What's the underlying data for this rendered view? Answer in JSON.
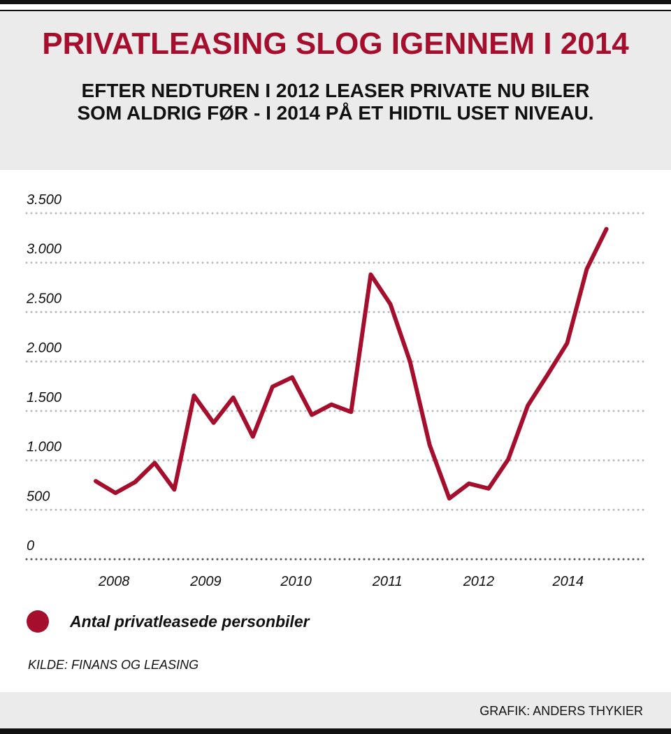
{
  "header": {
    "title": "PRIVATLEASING SLOG IGENNEM I 2014",
    "subtitle": "EFTER NEDTUREN I 2012 LEASER PRIVATE NU BILER SOM ALDRIG FØR - I 2014 PÅ ET HIDTIL USET NIVEAU."
  },
  "chart_data": {
    "type": "line",
    "title": "PRIVATLEASING SLOG IGENNEM I 2014",
    "xlabel": "",
    "ylabel": "",
    "ylim": [
      0,
      3500
    ],
    "yticks": [
      0,
      500,
      1000,
      1500,
      2000,
      2500,
      3000,
      3500
    ],
    "ytick_labels": [
      "0",
      "500",
      "1.000",
      "1.500",
      "2.000",
      "2.500",
      "3.000",
      "3.500"
    ],
    "xticks": [
      {
        "label": "2008",
        "at": 0.93
      },
      {
        "label": "2009",
        "at": 5.6
      },
      {
        "label": "2010",
        "at": 10.2
      },
      {
        "label": "2011",
        "at": 14.85
      },
      {
        "label": "2012",
        "at": 19.5
      },
      {
        "label": "2014",
        "at": 24.05
      }
    ],
    "grid": true,
    "series": [
      {
        "name": "Antal privatleasede personbiler",
        "color": "#a50f2d",
        "values": [
          790,
          670,
          780,
          975,
          705,
          1655,
          1380,
          1635,
          1240,
          1745,
          1840,
          1460,
          1565,
          1490,
          2880,
          2580,
          2000,
          1155,
          615,
          765,
          715,
          1010,
          1555,
          1865,
          2185,
          2935,
          3340
        ]
      }
    ],
    "legend": "bottom-left"
  },
  "source": "KILDE: FINANS OG LEASING",
  "credit": "GRAFIK: ANDERS THYKIER"
}
